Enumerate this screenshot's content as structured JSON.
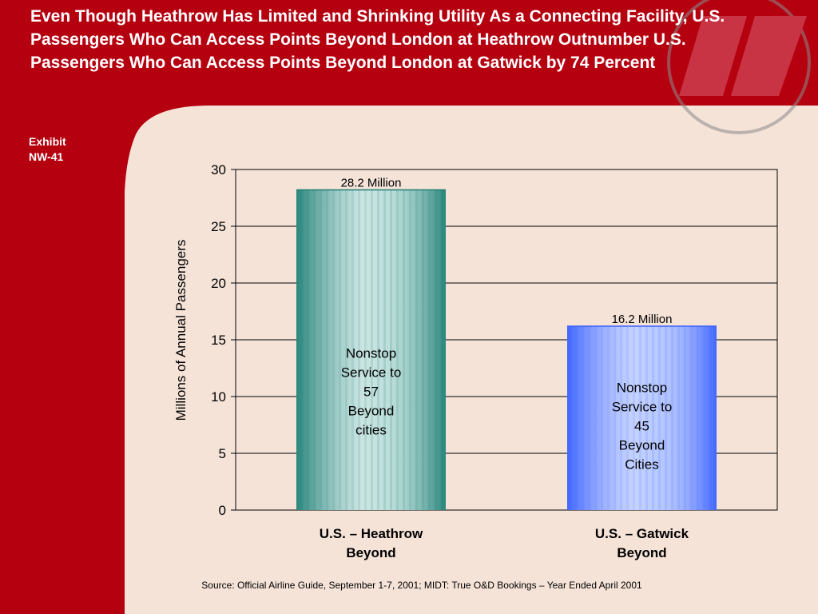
{
  "title": "Even Though Heathrow Has Limited and Shrinking Utility As a Connecting Facility, U.S. Passengers Who Can Access Points Beyond London at Heathrow Outnumber U.S. Passengers Who Can Access Points Beyond London at Gatwick by 74 Percent",
  "exhibit": {
    "line1": "Exhibit",
    "line2": "NW-41"
  },
  "source": "Source:  Official Airline Guide, September 1-7, 2001; MIDT: True O&D Bookings – Year Ended April 2001",
  "colors": {
    "banner": "#b5000f",
    "background": "#f5e3d8",
    "heathrow_bar": "#2a8a80",
    "gatwick_bar": "#4a72ff"
  },
  "chart_data": {
    "type": "bar",
    "title": "",
    "xlabel": "",
    "ylabel": "Millions of Annual Passengers",
    "ylim": [
      0,
      30
    ],
    "yticks": [
      0,
      5,
      10,
      15,
      20,
      25,
      30
    ],
    "grid": true,
    "categories": [
      [
        "U.S. – Heathrow",
        "Beyond"
      ],
      [
        "U.S. – Gatwick",
        "Beyond"
      ]
    ],
    "values": [
      28.2,
      16.2
    ],
    "value_labels": [
      "28.2 Million",
      "16.2 Million"
    ],
    "annotations": [
      [
        "Nonstop",
        "Service to",
        "57",
        "Beyond",
        "cities"
      ],
      [
        "Nonstop",
        "Service to",
        "45",
        "Beyond",
        "Cities"
      ]
    ]
  }
}
